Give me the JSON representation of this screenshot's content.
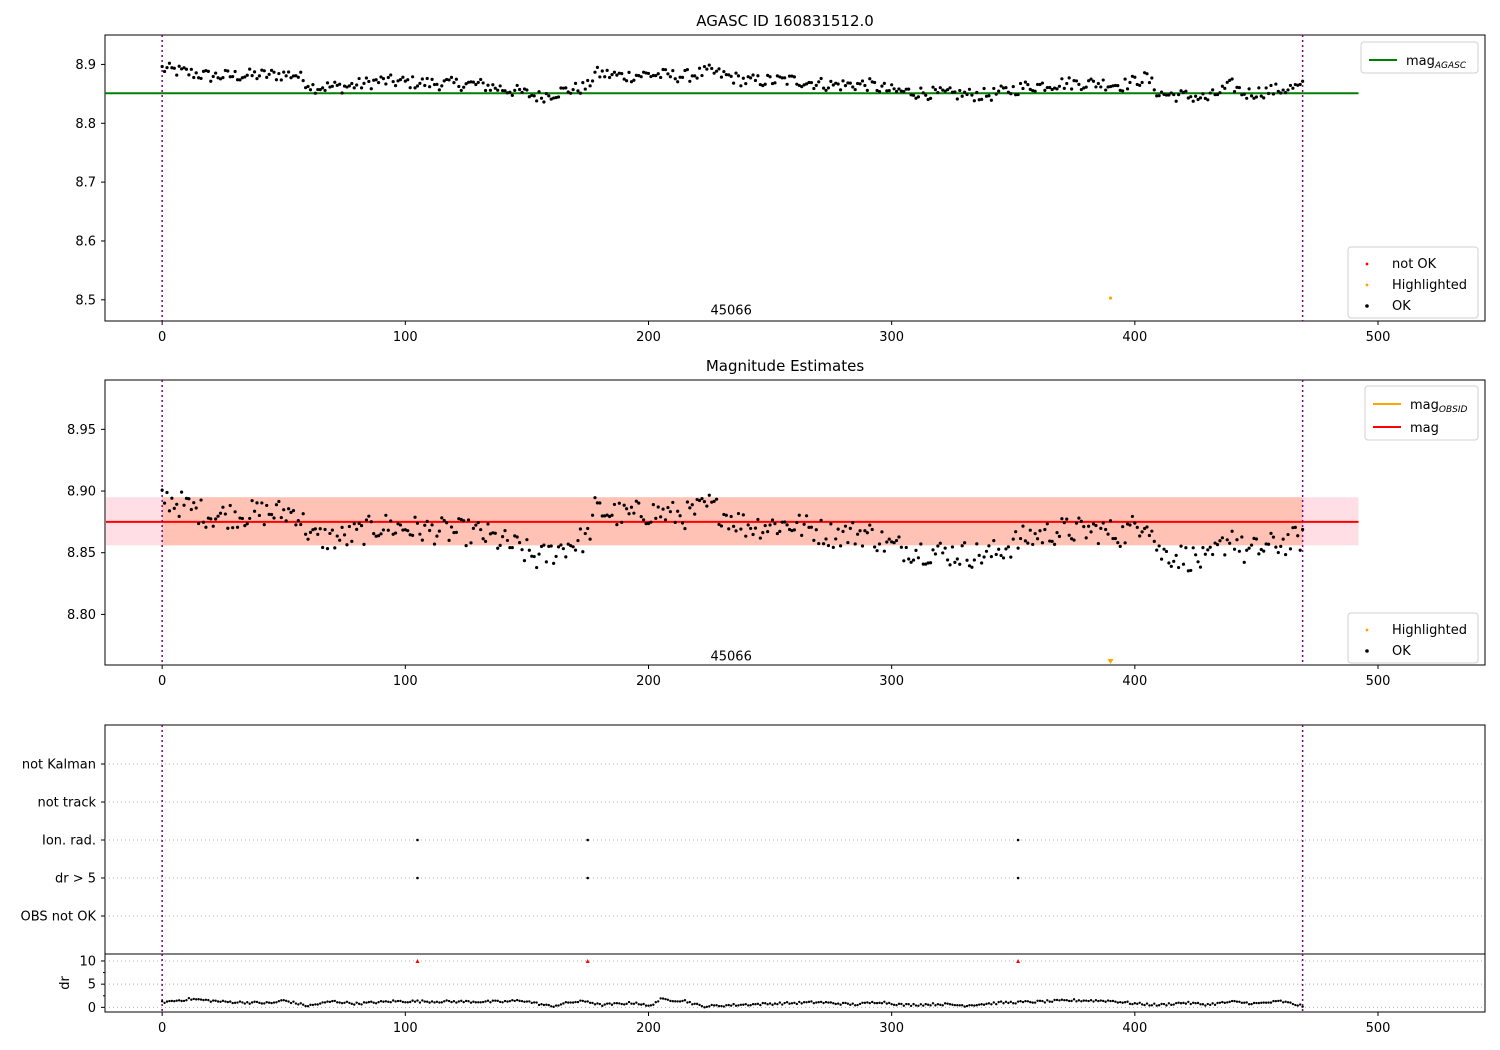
{
  "chart_data": [
    {
      "type": "scatter",
      "title": "AGASC ID 160831512.0",
      "xlim": [
        -23.5,
        544
      ],
      "ylim": [
        8.464,
        8.95
      ],
      "xticks": [
        "0",
        "100",
        "200",
        "300",
        "400",
        "500"
      ],
      "yticks": [
        "8.5",
        "8.6",
        "8.7",
        "8.8",
        "8.9"
      ],
      "reference_line": {
        "name": "mag_AGASC",
        "value": 8.851,
        "x_range": [
          -23.5,
          492
        ],
        "color": "#008000"
      },
      "obsid_boundaries": [
        0,
        469
      ],
      "obsid_label": {
        "text": "45066",
        "x": 234,
        "y": 8.48
      },
      "highlighted_points": [
        {
          "x": 390,
          "y": 8.503
        }
      ],
      "legend_top": {
        "position": "top-right",
        "entries": [
          {
            "label": "mag",
            "sub": "AGASC",
            "color": "#008000"
          }
        ]
      },
      "legend_bottom": {
        "position": "bottom-right",
        "entries": [
          {
            "label": "not OK",
            "color": "#ff0000"
          },
          {
            "label": "Highlighted",
            "color": "#ffa500"
          },
          {
            "label": "OK",
            "color": "#000000"
          }
        ]
      },
      "series": [
        {
          "name": "OK",
          "x_range": [
            0,
            469
          ],
          "segments": [
            [
              0,
              8.893
            ],
            [
              20,
              8.88
            ],
            [
              40,
              8.882
            ],
            [
              55,
              8.883
            ],
            [
              62,
              8.862
            ],
            [
              75,
              8.862
            ],
            [
              90,
              8.872
            ],
            [
              100,
              8.87
            ],
            [
              110,
              8.868
            ],
            [
              130,
              8.866
            ],
            [
              145,
              8.855
            ],
            [
              155,
              8.845
            ],
            [
              165,
              8.855
            ],
            [
              175,
              8.862
            ],
            [
              178,
              8.885
            ],
            [
              190,
              8.88
            ],
            [
              200,
              8.883
            ],
            [
              215,
              8.88
            ],
            [
              225,
              8.888
            ],
            [
              240,
              8.872
            ],
            [
              260,
              8.873
            ],
            [
              275,
              8.865
            ],
            [
              290,
              8.866
            ],
            [
              300,
              8.855
            ],
            [
              320,
              8.85
            ],
            [
              340,
              8.848
            ],
            [
              355,
              8.862
            ],
            [
              370,
              8.868
            ],
            [
              385,
              8.868
            ],
            [
              395,
              8.865
            ],
            [
              405,
              8.878
            ],
            [
              410,
              8.85
            ],
            [
              425,
              8.845
            ],
            [
              430,
              8.842
            ],
            [
              440,
              8.865
            ],
            [
              445,
              8.85
            ],
            [
              455,
              8.855
            ],
            [
              469,
              8.862
            ]
          ]
        }
      ]
    },
    {
      "type": "scatter",
      "title": "Magnitude Estimates",
      "xlim": [
        -23.5,
        544
      ],
      "ylim": [
        8.759,
        8.99
      ],
      "xticks": [
        "0",
        "100",
        "200",
        "300",
        "400",
        "500"
      ],
      "yticks": [
        "8.80",
        "8.85",
        "8.90",
        "8.95"
      ],
      "mag_line": {
        "name": "mag",
        "value": 8.875,
        "x_range": [
          -23.5,
          492
        ],
        "color": "#ff0000"
      },
      "mag_band": {
        "y_range": [
          8.856,
          8.895
        ],
        "x_range": [
          -23.5,
          492
        ]
      },
      "obsid_band": {
        "y_range": [
          8.856,
          8.895
        ],
        "x_range": [
          0,
          469
        ]
      },
      "obsid_boundaries": [
        0,
        469
      ],
      "obsid_label": {
        "text": "45066",
        "x": 234,
        "y": 8.765
      },
      "highlighted_points": [
        {
          "x": 390,
          "y": 8.76
        }
      ],
      "legend_top": {
        "position": "top-right",
        "entries": [
          {
            "label": "mag",
            "sub": "OBSID",
            "color": "#ffa500"
          },
          {
            "label": "mag",
            "sub": "",
            "color": "#ff0000"
          }
        ]
      },
      "legend_bottom": {
        "position": "bottom-right",
        "entries": [
          {
            "label": "Highlighted",
            "color": "#ffa500"
          },
          {
            "label": "OK",
            "color": "#000000"
          }
        ]
      },
      "series": [
        {
          "name": "OK",
          "x_range": [
            0,
            469
          ],
          "segments": [
            [
              0,
              8.895
            ],
            [
              20,
              8.88
            ],
            [
              40,
              8.882
            ],
            [
              55,
              8.883
            ],
            [
              62,
              8.862
            ],
            [
              75,
              8.862
            ],
            [
              90,
              8.872
            ],
            [
              100,
              8.87
            ],
            [
              110,
              8.868
            ],
            [
              130,
              8.866
            ],
            [
              145,
              8.855
            ],
            [
              155,
              8.845
            ],
            [
              165,
              8.855
            ],
            [
              175,
              8.862
            ],
            [
              178,
              8.885
            ],
            [
              190,
              8.88
            ],
            [
              200,
              8.883
            ],
            [
              215,
              8.88
            ],
            [
              225,
              8.888
            ],
            [
              240,
              8.872
            ],
            [
              260,
              8.873
            ],
            [
              275,
              8.865
            ],
            [
              290,
              8.866
            ],
            [
              300,
              8.855
            ],
            [
              320,
              8.85
            ],
            [
              340,
              8.848
            ],
            [
              355,
              8.862
            ],
            [
              370,
              8.868
            ],
            [
              385,
              8.868
            ],
            [
              395,
              8.865
            ],
            [
              405,
              8.878
            ],
            [
              410,
              8.85
            ],
            [
              425,
              8.845
            ],
            [
              430,
              8.842
            ],
            [
              440,
              8.865
            ],
            [
              445,
              8.85
            ],
            [
              455,
              8.855
            ],
            [
              469,
              8.862
            ]
          ]
        }
      ]
    },
    {
      "type": "scatter",
      "title": "",
      "xlim": [
        -23.5,
        544
      ],
      "categories": [
        "not Kalman",
        "not track",
        "Ion. rad.",
        "dr > 5",
        "OBS not OK"
      ],
      "obsid_boundaries": [
        0,
        469
      ],
      "flag_points": [
        {
          "flag": "Ion. rad.",
          "x": [
            105,
            175,
            352
          ]
        },
        {
          "flag": "dr > 5",
          "x": [
            105,
            175,
            352
          ]
        }
      ]
    },
    {
      "type": "scatter",
      "title": "",
      "ylabel": "dr",
      "xlim": [
        -23.5,
        544
      ],
      "ylim": [
        -1,
        11.5
      ],
      "xticks": [
        "0",
        "100",
        "200",
        "300",
        "400",
        "500"
      ],
      "yticks": [
        "0",
        "5",
        "10"
      ],
      "obsid_boundaries": [
        0,
        469
      ],
      "clipped_points": {
        "x": [
          105,
          175,
          352
        ],
        "y": 10,
        "color": "#ff0000"
      },
      "series": [
        {
          "name": "dr",
          "x_range": [
            0,
            469
          ],
          "segments": [
            [
              0,
              1.1
            ],
            [
              12,
              1.8
            ],
            [
              25,
              1.2
            ],
            [
              45,
              0.9
            ],
            [
              50,
              1.5
            ],
            [
              60,
              0.3
            ],
            [
              70,
              1.3
            ],
            [
              80,
              0.8
            ],
            [
              95,
              1.3
            ],
            [
              140,
              1.2
            ],
            [
              148,
              1.5
            ],
            [
              160,
              0.2
            ],
            [
              168,
              1.1
            ],
            [
              175,
              1.3
            ],
            [
              180,
              0.5
            ],
            [
              195,
              1.0
            ],
            [
              200,
              0.2
            ],
            [
              205,
              1.7
            ],
            [
              215,
              1.4
            ],
            [
              222,
              0.2
            ],
            [
              240,
              0.6
            ],
            [
              270,
              1.1
            ],
            [
              285,
              0.6
            ],
            [
              295,
              1.2
            ],
            [
              305,
              0.5
            ],
            [
              320,
              0.7
            ],
            [
              330,
              0.4
            ],
            [
              345,
              1.0
            ],
            [
              360,
              1.2
            ],
            [
              375,
              1.5
            ],
            [
              390,
              1.4
            ],
            [
              400,
              0.8
            ],
            [
              410,
              0.5
            ],
            [
              420,
              1.0
            ],
            [
              430,
              0.6
            ],
            [
              440,
              1.2
            ],
            [
              450,
              0.8
            ],
            [
              460,
              1.3
            ],
            [
              469,
              0.3
            ]
          ]
        }
      ]
    }
  ]
}
